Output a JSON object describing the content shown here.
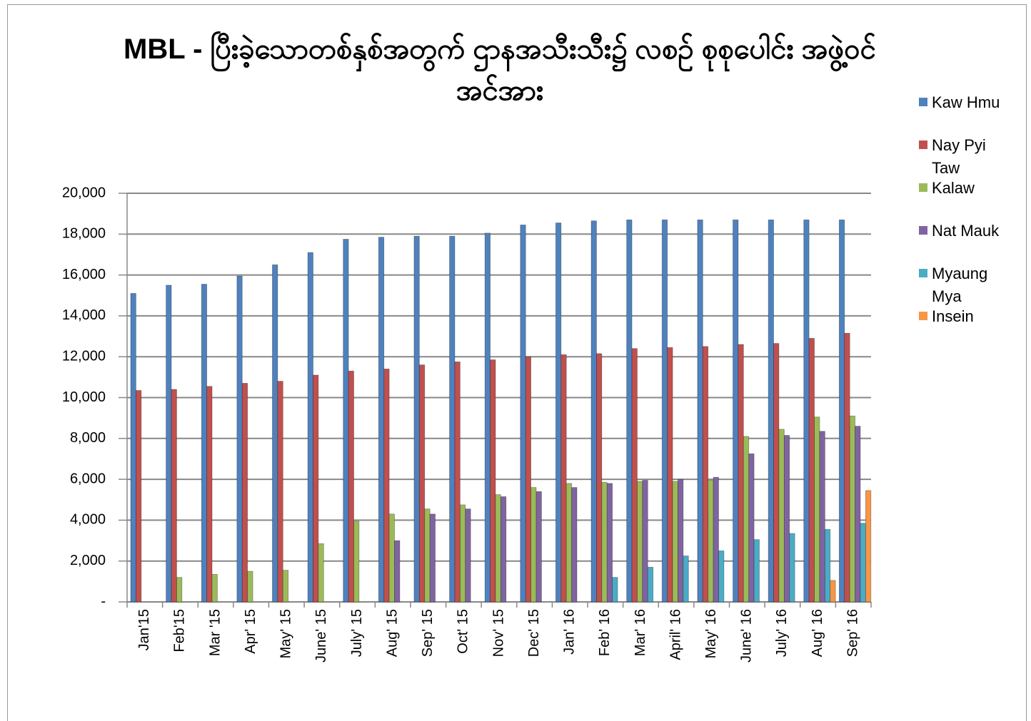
{
  "chart_data": {
    "type": "bar",
    "title": "MBL - ပြီးခဲ့သောတစ်နှစ်အတွက် ဌာနအသီးသီး၌ လစဉ် စုစုပေါင်း အဖွဲ့ဝင်အင်အား",
    "categories": [
      "Jan'15",
      "Feb'15",
      "Mar '15",
      "Apr' 15",
      "May' 15",
      "June' 15",
      "July' 15",
      "Aug' 15",
      "Sep' 15",
      "Oct' 15",
      "Nov' 15",
      "Dec' 15",
      "Jan' 16",
      "Feb' 16",
      "Mar' 16",
      "April' 16",
      "May' 16",
      "June' 16",
      "July' 16",
      "Aug' 16",
      "Sep' 16"
    ],
    "series": [
      {
        "name": "Kaw Hmu",
        "color": "#4f81bd",
        "values": [
          15100,
          15500,
          15550,
          15950,
          16500,
          17100,
          17750,
          17850,
          17900,
          17900,
          18050,
          18450,
          18550,
          18650,
          18700,
          18700,
          18700,
          18700,
          18700,
          18700,
          18700
        ]
      },
      {
        "name": "Nay Pyi Taw",
        "color": "#c0504d",
        "values": [
          10350,
          10400,
          10550,
          10700,
          10800,
          11100,
          11300,
          11400,
          11600,
          11750,
          11850,
          12000,
          12100,
          12150,
          12400,
          12450,
          12500,
          12600,
          12650,
          12900,
          13150
        ]
      },
      {
        "name": "Kalaw",
        "color": "#9bbb59",
        "values": [
          null,
          1200,
          1350,
          1500,
          1550,
          2850,
          3950,
          4300,
          4550,
          4750,
          5250,
          5600,
          5800,
          5850,
          5900,
          5900,
          5950,
          8100,
          8450,
          9050,
          9100
        ]
      },
      {
        "name": "Nat Mauk",
        "color": "#8064a2",
        "values": [
          null,
          null,
          null,
          null,
          null,
          null,
          null,
          3000,
          4300,
          4550,
          5150,
          5400,
          5600,
          5800,
          5950,
          6000,
          6100,
          7250,
          8150,
          8350,
          8600
        ]
      },
      {
        "name": "Myaung Mya",
        "color": "#4bacc6",
        "values": [
          null,
          null,
          null,
          null,
          null,
          null,
          null,
          null,
          null,
          null,
          null,
          null,
          null,
          1200,
          1700,
          2250,
          2500,
          3050,
          3350,
          3550,
          3850
        ]
      },
      {
        "name": "Insein",
        "color": "#f79646",
        "values": [
          null,
          null,
          null,
          null,
          null,
          null,
          null,
          null,
          null,
          null,
          null,
          null,
          null,
          null,
          null,
          null,
          null,
          null,
          null,
          1050,
          5450
        ]
      }
    ],
    "ylim": [
      0,
      20000
    ],
    "yticks": [
      {
        "value": 0,
        "label": "-"
      },
      {
        "value": 2000,
        "label": "2,000"
      },
      {
        "value": 4000,
        "label": "4,000"
      },
      {
        "value": 6000,
        "label": "6,000"
      },
      {
        "value": 8000,
        "label": "8,000"
      },
      {
        "value": 10000,
        "label": "10,000"
      },
      {
        "value": 12000,
        "label": "12,000"
      },
      {
        "value": 14000,
        "label": "14,000"
      },
      {
        "value": 16000,
        "label": "16,000"
      },
      {
        "value": 18000,
        "label": "18,000"
      },
      {
        "value": 20000,
        "label": "20,000"
      }
    ],
    "grid": true,
    "legend": "right"
  }
}
